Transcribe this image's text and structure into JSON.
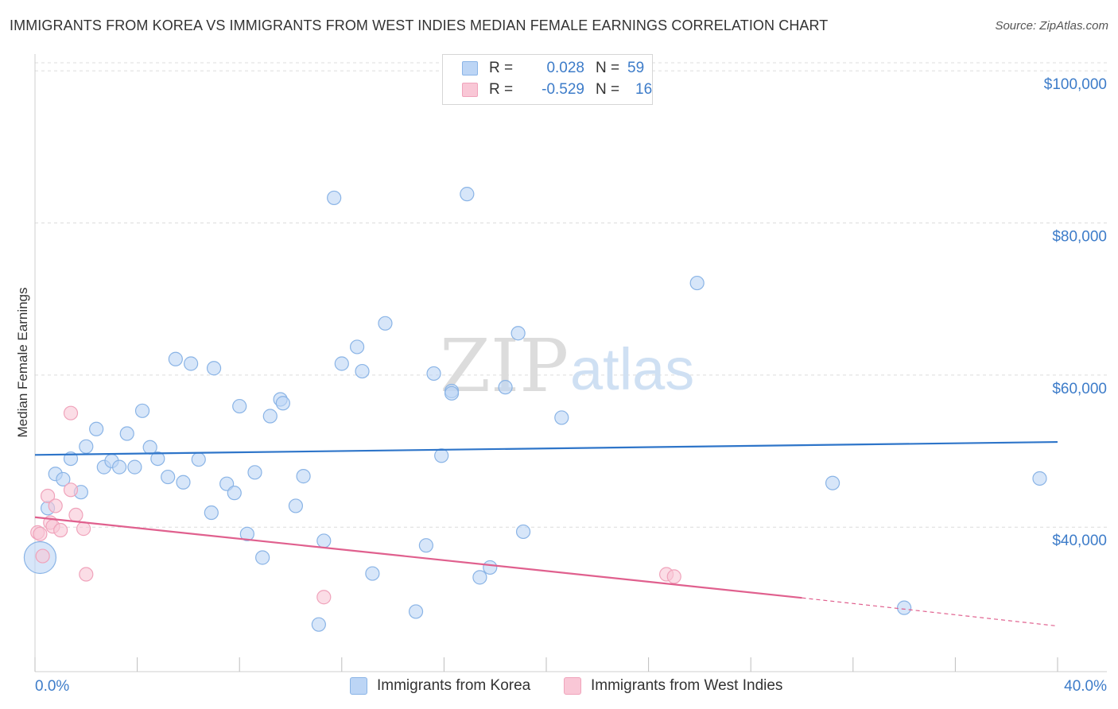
{
  "title": "IMMIGRANTS FROM KOREA VS IMMIGRANTS FROM WEST INDIES MEDIAN FEMALE EARNINGS CORRELATION CHART",
  "source": "Source: ZipAtlas.com",
  "watermark": {
    "zip": "ZIP",
    "atlas": "atlas"
  },
  "colors": {
    "korea_fill": "#bcd5f5",
    "korea_stroke": "#8ab4e6",
    "korea_line": "#2e75c9",
    "wi_fill": "#f9c7d6",
    "wi_stroke": "#f0a3bb",
    "wi_line": "#e0608e",
    "accent_text": "#3d7cc9"
  },
  "legend": {
    "korea": {
      "r_label": "R =",
      "r_value": "0.028",
      "n_label": "N =",
      "n_value": "59"
    },
    "west_indies": {
      "r_label": "R =",
      "r_value": "-0.529",
      "n_label": "N =",
      "n_value": "16"
    }
  },
  "bottom_legend": {
    "korea": "Immigrants from Korea",
    "west_indies": "Immigrants from West Indies"
  },
  "chart_data": {
    "type": "scatter",
    "title": "IMMIGRANTS FROM KOREA VS IMMIGRANTS FROM WEST INDIES MEDIAN FEMALE EARNINGS CORRELATION CHART",
    "xlabel": "",
    "ylabel": "Median Female Earnings",
    "xlim": [
      0,
      40
    ],
    "ylim": [
      21000,
      102000
    ],
    "x_tick_labels": [
      "0.0%",
      "40.0%"
    ],
    "y_ticks": [
      40000,
      60000,
      80000,
      100000
    ],
    "y_tick_labels": [
      "$40,000",
      "$60,000",
      "$80,000",
      "$100,000"
    ],
    "grid": true,
    "series": [
      {
        "name": "Immigrants from Korea",
        "trend": {
          "x": [
            0,
            40
          ],
          "y": [
            49500,
            51200
          ]
        },
        "points": [
          {
            "x": 0.2,
            "y": 36000,
            "big": true
          },
          {
            "x": 0.5,
            "y": 42500
          },
          {
            "x": 0.8,
            "y": 47000
          },
          {
            "x": 1.1,
            "y": 46300
          },
          {
            "x": 1.4,
            "y": 49000
          },
          {
            "x": 1.8,
            "y": 44600
          },
          {
            "x": 2.0,
            "y": 50600
          },
          {
            "x": 2.4,
            "y": 52900
          },
          {
            "x": 2.7,
            "y": 47900
          },
          {
            "x": 3.0,
            "y": 48700
          },
          {
            "x": 3.3,
            "y": 47900
          },
          {
            "x": 3.6,
            "y": 52300
          },
          {
            "x": 3.9,
            "y": 47900
          },
          {
            "x": 4.2,
            "y": 55300
          },
          {
            "x": 4.5,
            "y": 50500
          },
          {
            "x": 4.8,
            "y": 49000
          },
          {
            "x": 5.2,
            "y": 46600
          },
          {
            "x": 5.5,
            "y": 62100
          },
          {
            "x": 5.8,
            "y": 45900
          },
          {
            "x": 6.1,
            "y": 61500
          },
          {
            "x": 6.4,
            "y": 48900
          },
          {
            "x": 6.9,
            "y": 41900
          },
          {
            "x": 7.0,
            "y": 60900
          },
          {
            "x": 7.5,
            "y": 45700
          },
          {
            "x": 7.8,
            "y": 44500
          },
          {
            "x": 8.0,
            "y": 55900
          },
          {
            "x": 8.3,
            "y": 39100
          },
          {
            "x": 8.6,
            "y": 47200
          },
          {
            "x": 8.9,
            "y": 36000
          },
          {
            "x": 9.2,
            "y": 54600
          },
          {
            "x": 9.6,
            "y": 56800
          },
          {
            "x": 9.7,
            "y": 56300
          },
          {
            "x": 10.2,
            "y": 42800
          },
          {
            "x": 10.5,
            "y": 46700
          },
          {
            "x": 11.1,
            "y": 27200
          },
          {
            "x": 11.3,
            "y": 38200
          },
          {
            "x": 11.7,
            "y": 83300
          },
          {
            "x": 12.0,
            "y": 61500
          },
          {
            "x": 12.6,
            "y": 63700
          },
          {
            "x": 12.8,
            "y": 60500
          },
          {
            "x": 13.2,
            "y": 33900
          },
          {
            "x": 13.7,
            "y": 66800
          },
          {
            "x": 14.9,
            "y": 28900
          },
          {
            "x": 15.3,
            "y": 37600
          },
          {
            "x": 15.6,
            "y": 60200
          },
          {
            "x": 15.9,
            "y": 49400
          },
          {
            "x": 16.3,
            "y": 57900
          },
          {
            "x": 16.3,
            "y": 57600
          },
          {
            "x": 16.9,
            "y": 83800
          },
          {
            "x": 17.4,
            "y": 33400
          },
          {
            "x": 17.8,
            "y": 34700
          },
          {
            "x": 18.4,
            "y": 58400
          },
          {
            "x": 18.9,
            "y": 65500
          },
          {
            "x": 19.1,
            "y": 39400
          },
          {
            "x": 20.6,
            "y": 54400
          },
          {
            "x": 25.9,
            "y": 72100
          },
          {
            "x": 31.2,
            "y": 45800
          },
          {
            "x": 34.0,
            "y": 29400
          },
          {
            "x": 39.3,
            "y": 46400
          }
        ]
      },
      {
        "name": "Immigrants from West Indies",
        "trend": {
          "x": [
            0,
            30
          ],
          "y": [
            41300,
            30700
          ]
        },
        "trend_dashed": {
          "x": [
            30,
            40
          ],
          "y": [
            30700,
            27000
          ]
        },
        "points": [
          {
            "x": 0.1,
            "y": 39300
          },
          {
            "x": 0.2,
            "y": 39100
          },
          {
            "x": 0.3,
            "y": 36200
          },
          {
            "x": 0.5,
            "y": 44100
          },
          {
            "x": 0.6,
            "y": 40600
          },
          {
            "x": 0.7,
            "y": 40100
          },
          {
            "x": 0.8,
            "y": 42800
          },
          {
            "x": 1.0,
            "y": 39600
          },
          {
            "x": 1.4,
            "y": 44900
          },
          {
            "x": 1.4,
            "y": 55000
          },
          {
            "x": 1.6,
            "y": 41600
          },
          {
            "x": 1.9,
            "y": 39800
          },
          {
            "x": 2.0,
            "y": 33800
          },
          {
            "x": 11.3,
            "y": 30800
          },
          {
            "x": 24.7,
            "y": 33800
          },
          {
            "x": 25.0,
            "y": 33500
          }
        ]
      }
    ]
  }
}
